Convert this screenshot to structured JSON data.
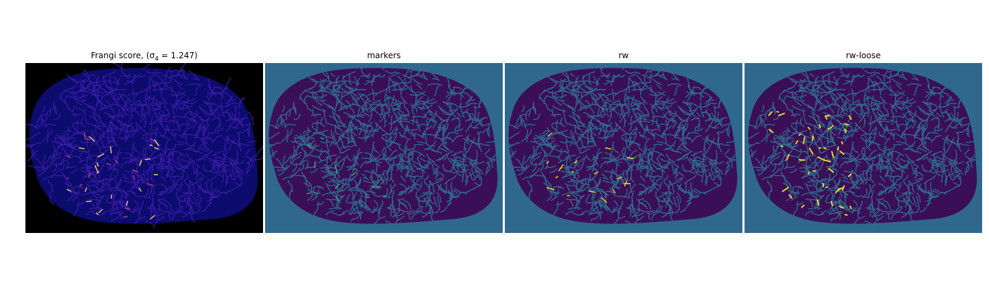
{
  "figure": {
    "panels": [
      {
        "id": "frangi",
        "title": "Frangi score, (σ",
        "title_sub": "4",
        "title_rest": " = 1.247)",
        "background": "#000000",
        "blob_fill": "#0c0c6e",
        "vein_color": "#3b1ca8",
        "highlight_color": "#ffd27a",
        "accent_color": "#c83d8c"
      },
      {
        "id": "markers",
        "title": "markers",
        "background": "#30678d",
        "blob_fill": "#3b0f57",
        "vein_color": "#2f6b8e",
        "highlight_color": "#35b779"
      },
      {
        "id": "rw",
        "title": "rw",
        "background": "#30678d",
        "blob_fill": "#3b0f57",
        "vein_color": "#2f6b8e",
        "highlight_color": "#fde725"
      },
      {
        "id": "rw-loose",
        "title": "rw-loose",
        "background": "#30678d",
        "blob_fill": "#3b0f57",
        "vein_color": "#2f6b8e",
        "highlight_color": "#fde725"
      }
    ]
  }
}
